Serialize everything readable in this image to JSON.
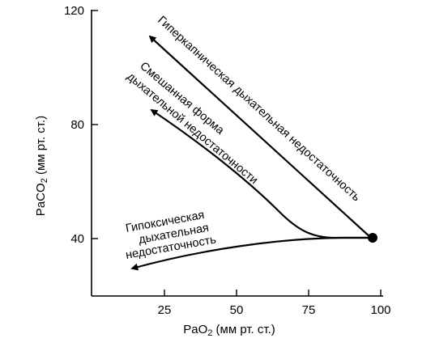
{
  "x_axis": {
    "label_prefix": "PaO",
    "label_sub": "2",
    "label_suffix": " (мм рт. ст.)",
    "ticks": [
      "25",
      "50",
      "75",
      "100"
    ],
    "tick_values": [
      25,
      50,
      75,
      100
    ],
    "range": [
      0,
      100
    ]
  },
  "y_axis": {
    "label_prefix": "PaCO",
    "label_sub": "2",
    "label_suffix": " (мм рт. ст.)",
    "ticks": [
      "40",
      "80",
      "120"
    ],
    "tick_values": [
      40,
      80,
      120
    ],
    "range": [
      20,
      120
    ]
  },
  "start_point": {
    "pao2": 97,
    "paco2": 40
  },
  "curves": {
    "hypercapnic": {
      "label": "Гиперкапническая дыхательная недостаточность"
    },
    "mixed": {
      "label_line1": "Смешанная форма",
      "label_line2": "дыхательной недостаточности"
    },
    "hypoxic": {
      "label_line1": "Гипоксическая",
      "label_line2": "дыхательная",
      "label_line3": "недостаточность"
    }
  },
  "chart_data": {
    "type": "line",
    "xlabel": "PaO2 (мм рт. ст.)",
    "ylabel": "PaCO2 (мм рт. ст.)",
    "xlim": [
      0,
      100
    ],
    "ylim": [
      20,
      120
    ],
    "series": [
      {
        "name": "Гиперкапническая дыхательная недостаточность",
        "x": [
          97,
          21
        ],
        "y": [
          40,
          115
        ]
      },
      {
        "name": "Смешанная форма дыхательной недостаточности",
        "x": [
          97,
          80,
          60,
          40,
          22
        ],
        "y": [
          40,
          41,
          54,
          72,
          88
        ]
      },
      {
        "name": "Гипоксическая дыхательная недостаточность",
        "x": [
          97,
          80,
          60,
          40,
          20
        ],
        "y": [
          40,
          40,
          39,
          36,
          30
        ]
      }
    ],
    "grid": false,
    "legend": "none"
  }
}
